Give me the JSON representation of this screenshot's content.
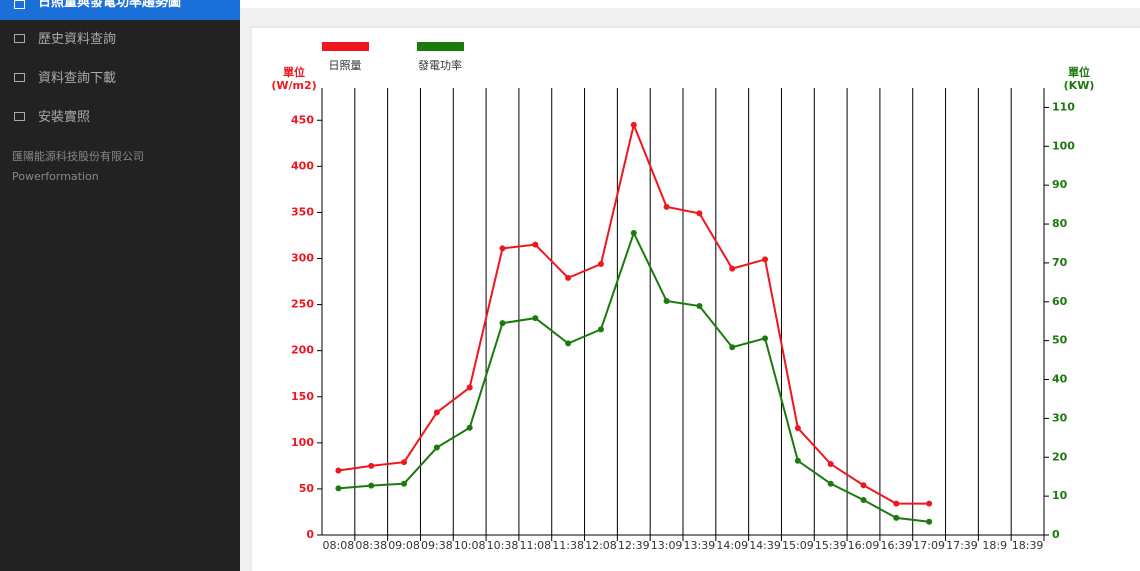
{
  "sidebar": {
    "items": [
      "日照量與發電功率趨勢圖",
      "歷史資料查詢",
      "資料查詢下載",
      "安裝實照"
    ],
    "company": "匯陽能源科技股份有限公司",
    "brand": "Powerformation"
  },
  "chart_data": {
    "type": "line",
    "categories": [
      "08:08",
      "08:38",
      "09:08",
      "09:38",
      "10:08",
      "10:38",
      "11:08",
      "11:38",
      "12:08",
      "12:39",
      "13:09",
      "13:39",
      "14:09",
      "14:39",
      "15:09",
      "15:39",
      "16:09",
      "16:39",
      "17:09",
      "17:39",
      "18:9",
      "18:39"
    ],
    "series": [
      {
        "name": "日照量",
        "color": "#f0161e",
        "values": [
          70,
          75,
          79,
          133,
          160,
          311,
          315,
          279,
          294,
          445,
          356,
          349,
          289,
          299,
          116,
          77,
          54,
          34,
          34,
          null,
          null,
          null
        ]
      },
      {
        "name": "發電功率",
        "color": "#1a7a0c",
        "axis": "y2",
        "values": [
          12,
          12.7,
          13.2,
          22.5,
          27.6,
          54.5,
          55.8,
          49.3,
          52.9,
          77.7,
          60.2,
          58.9,
          48.3,
          50.6,
          19.1,
          13.2,
          9,
          4.4,
          3.4,
          null,
          null,
          null
        ]
      }
    ],
    "ylabel": [
      "單位",
      "(W/m2)"
    ],
    "y2label": [
      "單位",
      "(KW)"
    ],
    "ylim": [
      0,
      485
    ],
    "yticks": [
      0,
      50,
      100,
      150,
      200,
      250,
      300,
      350,
      400,
      450
    ],
    "y2lim": [
      0,
      115
    ],
    "y2ticks": [
      0,
      10,
      20,
      30,
      40,
      50,
      60,
      70,
      80,
      90,
      100,
      110
    ],
    "xgrid": true
  }
}
